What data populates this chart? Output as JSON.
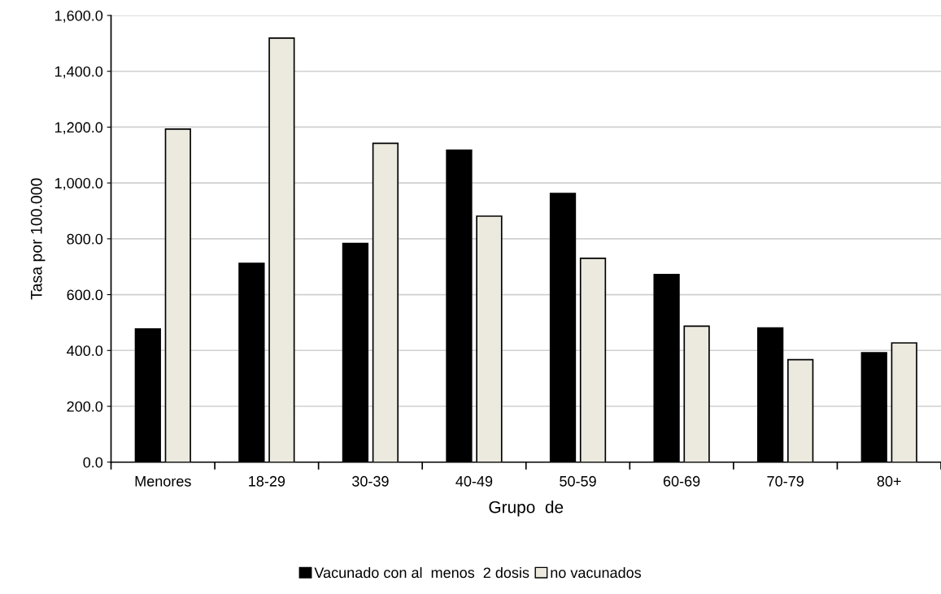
{
  "chart_data": {
    "type": "bar",
    "xlabel": "Grupo  de",
    "ylabel": "Tasa por 100.000",
    "categories": [
      "Menores",
      "18-29",
      "30-39",
      "40-49",
      "50-59",
      "60-69",
      "70-79",
      "80+"
    ],
    "series": [
      {
        "name": "Vacunado con al  menos  2 dosis",
        "color": "#000000",
        "values": [
          477,
          712,
          783,
          1117,
          962,
          672,
          481,
          392
        ]
      },
      {
        "name": "no vacunados",
        "color": "#ece9de",
        "values": [
          1193,
          1519,
          1142,
          881,
          730,
          487,
          367,
          427
        ]
      }
    ],
    "ylim": [
      0,
      1600
    ],
    "yticks": [
      {
        "value": 0,
        "label": "0.0"
      },
      {
        "value": 200,
        "label": "200.0"
      },
      {
        "value": 400,
        "label": "400.0"
      },
      {
        "value": 600,
        "label": "600.0"
      },
      {
        "value": 800,
        "label": "800.0"
      },
      {
        "value": 1000,
        "label": "1,000.0"
      },
      {
        "value": 1200,
        "label": "1,200.0"
      },
      {
        "value": 1400,
        "label": "1,400.0"
      },
      {
        "value": 1600,
        "label": "1,600.0"
      }
    ],
    "grid": "y",
    "legend": "bottom"
  }
}
